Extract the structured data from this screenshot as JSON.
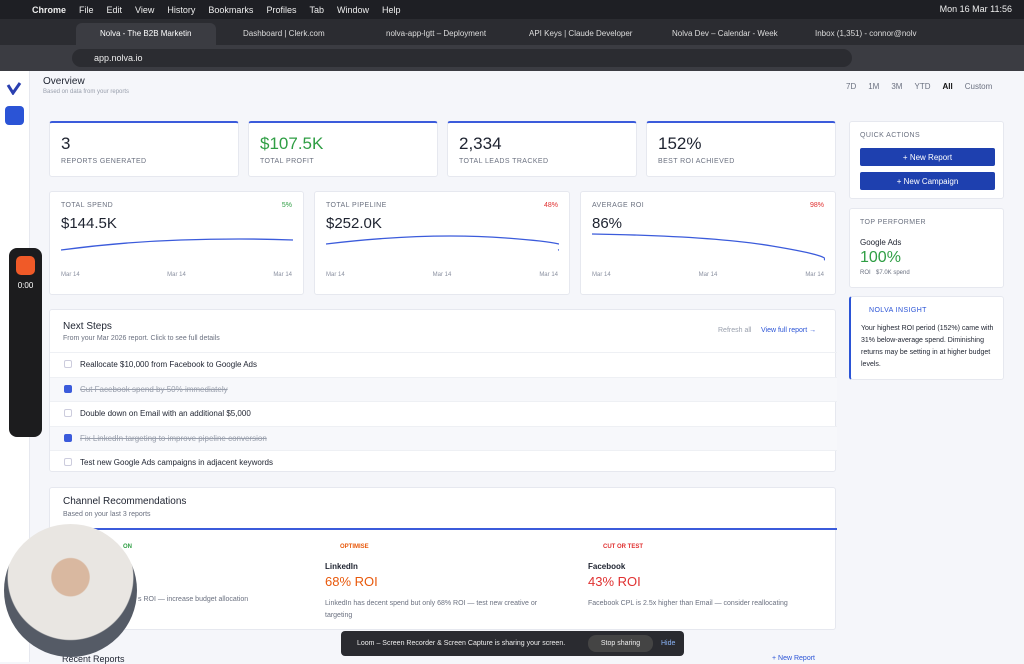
{
  "menubar": {
    "app": "Chrome",
    "items": [
      "File",
      "Edit",
      "View",
      "History",
      "Bookmarks",
      "Profiles",
      "Tab",
      "Window",
      "Help"
    ],
    "clock": "Mon 16 Mar  11:56"
  },
  "tabs": [
    "Nolva - The B2B Marketin",
    "Dashboard | Clerk.com",
    "nolva-app-lgtt – Deployment",
    "API Keys | Claude Developer",
    "Nolva Dev – Calendar - Week",
    "Inbox (1,351) - connor@nolv"
  ],
  "address": "app.nolva.io",
  "header": {
    "title": "Overview",
    "subtitle": "Based on data from your reports",
    "ranges": [
      "7D",
      "1M",
      "3M",
      "YTD",
      "All",
      "Custom"
    ]
  },
  "stats": [
    {
      "value": "3",
      "label": "REPORTS GENERATED"
    },
    {
      "value": "$107.5K",
      "label": "TOTAL PROFIT"
    },
    {
      "value": "2,334",
      "label": "TOTAL LEADS TRACKED"
    },
    {
      "value": "152%",
      "label": "BEST ROI ACHIEVED"
    }
  ],
  "trends": [
    {
      "label": "TOTAL SPEND",
      "value": "$144.5K",
      "change": "5%",
      "dates": [
        "Mar 14",
        "Mar 14",
        "Mar 14"
      ]
    },
    {
      "label": "TOTAL PIPELINE",
      "value": "$252.0K",
      "change": "48%",
      "dates": [
        "Mar 14",
        "Mar 14",
        "Mar 14"
      ]
    },
    {
      "label": "AVERAGE ROI",
      "value": "86%",
      "change": "98%",
      "dates": [
        "Mar 14",
        "Mar 14",
        "Mar 14"
      ]
    }
  ],
  "next_steps": {
    "title": "Next Steps",
    "subtitle": "From your Mar 2026 report. Click to see full details",
    "refresh": "Refresh all",
    "view": "View full report →",
    "tasks": [
      {
        "text": "Reallocate $10,000 from Facebook to Google Ads",
        "done": false
      },
      {
        "text": "Cut Facebook spend by 50% immediately",
        "done": true
      },
      {
        "text": "Double down on Email with an additional $5,000",
        "done": false
      },
      {
        "text": "Fix LinkedIn targeting to improve pipeline conversion",
        "done": true
      },
      {
        "text": "Test new Google Ads campaigns in adjacent keywords",
        "done": false
      }
    ]
  },
  "channels": {
    "title": "Channel Recommendations",
    "subtitle": "Based on your last 3 reports",
    "cards": [
      {
        "tag": "ON",
        "desc": "s ROI — increase budget allocation"
      },
      {
        "tag": "OPTIMISE",
        "name": "LinkedIn",
        "roi": "68% ROI",
        "desc": "LinkedIn has decent spend but only 68% ROI — test new creative or targeting"
      },
      {
        "tag": "CUT OR TEST",
        "name": "Facebook",
        "roi": "43% ROI",
        "desc": "Facebook CPL is 2.5x higher than Email — consider reallocating"
      }
    ]
  },
  "recent": {
    "title": "Recent Reports",
    "action": "+ New Report"
  },
  "sidebar_right": {
    "quick_title": "QUICK ACTIONS",
    "buttons": [
      "+ New Report",
      "+ New Campaign"
    ],
    "top_title": "TOP PERFORMER",
    "top_name": "Google Ads",
    "top_value": "100%",
    "top_metric": "ROI",
    "top_spend": "$7.0K spend",
    "insight_title": "NOLVA INSIGHT",
    "insight": "Your highest ROI period (152%) came with 31% below-average spend. Diminishing returns may be setting in at higher budget levels."
  },
  "loom": {
    "timer": "0:00",
    "banner": "Loom – Screen Recorder & Screen Capture is sharing your screen.",
    "stop": "Stop sharing",
    "hide": "Hide"
  }
}
